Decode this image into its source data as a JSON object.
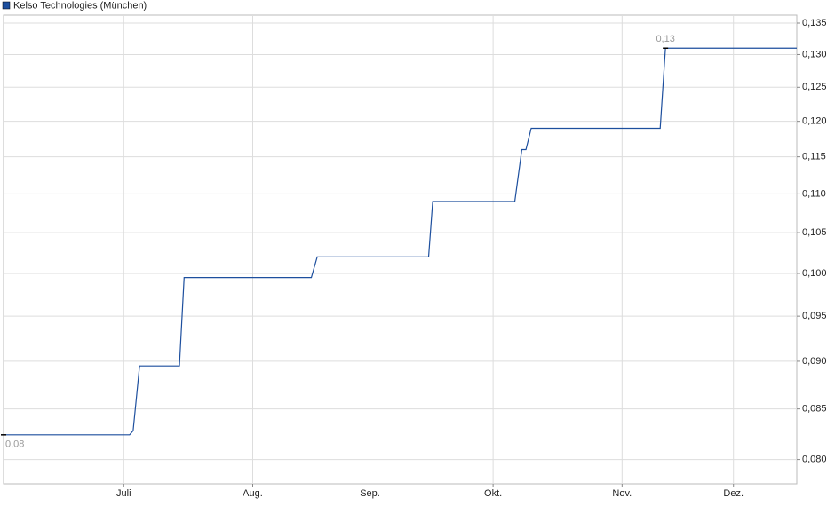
{
  "chart_data": {
    "type": "line",
    "series": [
      {
        "name": "Kelso Technologies (München)",
        "color": "#1d4f9e",
        "x": [
          -20.5,
          1,
          1.6,
          2.7,
          9.5,
          10.3,
          32,
          33,
          52,
          52.7,
          66.7,
          67.9,
          68.6,
          69.5,
          91.5,
          92.4,
          114.8
        ],
        "values": [
          0.0824,
          0.0824,
          0.0828,
          0.0895,
          0.0895,
          0.0995,
          0.0995,
          0.102,
          0.102,
          0.109,
          0.109,
          0.116,
          0.116,
          0.119,
          0.119,
          0.131,
          0.131
        ]
      }
    ],
    "annotations": [
      {
        "x": -20.5,
        "value": 0.0824,
        "label": "0,08"
      },
      {
        "x": 92.4,
        "value": 0.131,
        "label": "0,13"
      }
    ],
    "xlim": [
      -20.5,
      114.8
    ],
    "xticks": [
      {
        "value": 0,
        "label": "Juli"
      },
      {
        "value": 22,
        "label": "Aug."
      },
      {
        "value": 42,
        "label": "Sep."
      },
      {
        "value": 63,
        "label": "Okt."
      },
      {
        "value": 85,
        "label": "Nov."
      },
      {
        "value": 104,
        "label": "Dez."
      }
    ],
    "ylim": [
      0.0777,
      0.1363
    ],
    "log_scale": true,
    "grid": true,
    "yticks": [
      {
        "value": 0.08,
        "label": "0,080"
      },
      {
        "value": 0.085,
        "label": "0,085"
      },
      {
        "value": 0.09,
        "label": "0,090"
      },
      {
        "value": 0.095,
        "label": "0,095"
      },
      {
        "value": 0.1,
        "label": "0,100"
      },
      {
        "value": 0.105,
        "label": "0,105"
      },
      {
        "value": 0.11,
        "label": "0,110"
      },
      {
        "value": 0.115,
        "label": "0,115"
      },
      {
        "value": 0.12,
        "label": "0,120"
      },
      {
        "value": 0.125,
        "label": "0,125"
      },
      {
        "value": 0.13,
        "label": "0,130"
      },
      {
        "value": 0.135,
        "label": "0,135"
      }
    ]
  }
}
